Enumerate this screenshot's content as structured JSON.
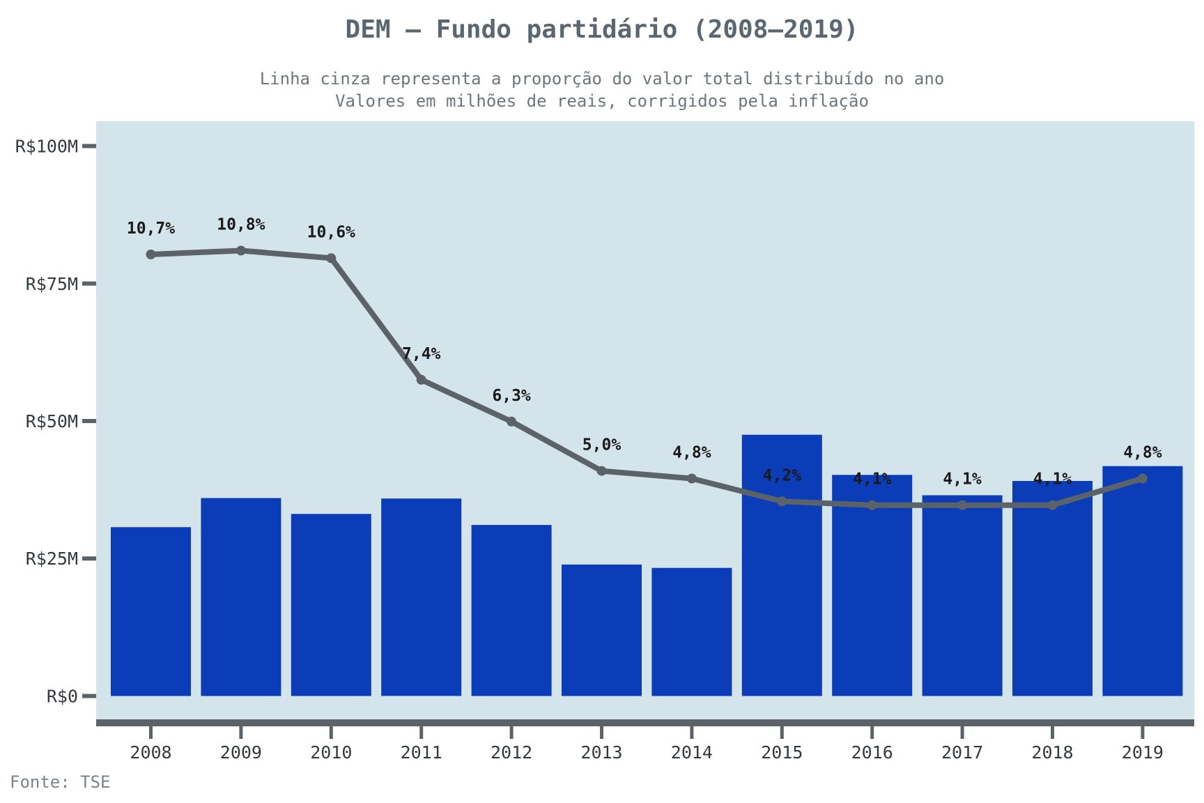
{
  "chart_data": {
    "type": "bar",
    "title": "DEM – Fundo partidário (2008–2019)",
    "subtitle_lines": [
      "Linha cinza representa a proporção do valor total distribuído no ano",
      "Valores em milhões de reais, corrigidos pela inflação"
    ],
    "source": "Fonte: TSE",
    "categories": [
      "2008",
      "2009",
      "2010",
      "2011",
      "2012",
      "2013",
      "2014",
      "2015",
      "2016",
      "2017",
      "2018",
      "2019"
    ],
    "y_ticks": [
      {
        "value": 0,
        "label": "R$0"
      },
      {
        "value": 25,
        "label": "R$25M"
      },
      {
        "value": 50,
        "label": "R$50M"
      },
      {
        "value": 75,
        "label": "R$75M"
      },
      {
        "value": 100,
        "label": "R$100M"
      }
    ],
    "ylim": [
      -4.5,
      104.5
    ],
    "grid": false,
    "series": [
      {
        "type": "bar",
        "values": [
          30.7,
          36.0,
          33.1,
          35.9,
          31.1,
          23.9,
          23.3,
          47.5,
          40.2,
          36.5,
          39.1,
          41.8
        ],
        "color": "#0b3db8"
      },
      {
        "type": "line",
        "values": [
          10.7,
          10.8,
          10.6,
          7.4,
          6.3,
          5.0,
          4.8,
          4.2,
          4.1,
          4.1,
          4.1,
          4.8
        ],
        "labels": [
          "10,7%",
          "10,8%",
          "10,6%",
          "7,4%",
          "6,3%",
          "5,0%",
          "4,8%",
          "4,2%",
          "4,1%",
          "4,1%",
          "4,1%",
          "4,8%"
        ],
        "unit": "%",
        "color": "#5b6368"
      }
    ],
    "colors": {
      "plot_background": "#d4e4eb",
      "axis": "#5b6368",
      "title": "#5b6770"
    }
  }
}
